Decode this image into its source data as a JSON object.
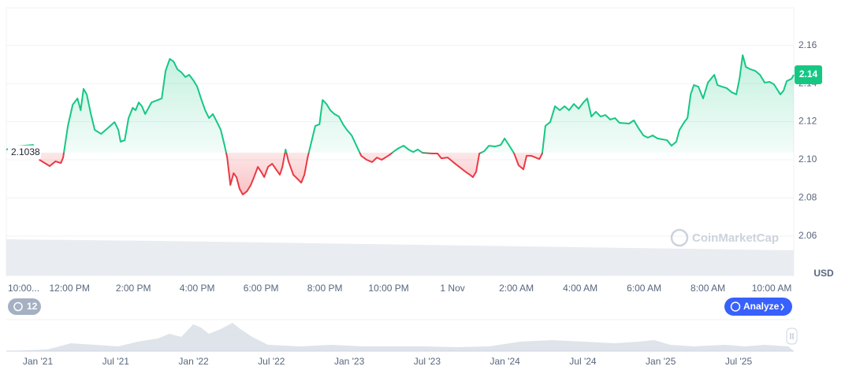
{
  "chart_data": {
    "type": "line",
    "x": [
      10.02,
      10.32,
      10.86,
      11.06,
      11.38,
      11.56,
      11.73,
      11.8,
      11.95,
      12.1,
      12.25,
      12.35,
      12.44,
      12.54,
      12.67,
      12.79,
      12.99,
      13.28,
      13.41,
      13.53,
      13.6,
      13.73,
      13.85,
      13.98,
      14.07,
      14.17,
      14.27,
      14.37,
      14.57,
      14.89,
      15.01,
      15.14,
      15.26,
      15.38,
      15.51,
      15.63,
      15.75,
      15.88,
      16.0,
      16.12,
      16.25,
      16.37,
      16.49,
      16.62,
      16.74,
      16.86,
      16.94,
      17.04,
      17.14,
      17.23,
      17.33,
      17.43,
      17.56,
      17.68,
      17.78,
      17.9,
      18.0,
      18.1,
      18.22,
      18.35,
      18.47,
      18.59,
      18.67,
      18.77,
      18.86,
      19.01,
      19.16,
      19.26,
      19.36,
      19.46,
      19.58,
      19.7,
      19.83,
      19.93,
      20.05,
      20.17,
      20.3,
      20.44,
      20.57,
      20.69,
      20.84,
      20.99,
      21.14,
      21.31,
      21.48,
      21.63,
      21.78,
      22.02,
      22.17,
      22.32,
      22.47,
      22.62,
      22.77,
      22.91,
      23.06,
      23.36,
      23.53,
      23.65,
      23.85,
      24.02,
      24.15,
      24.4,
      24.54,
      24.64,
      24.74,
      24.84,
      24.99,
      25.14,
      25.33,
      25.51,
      25.63,
      25.78,
      25.93,
      26.07,
      26.22,
      26.32,
      26.47,
      26.72,
      26.81,
      26.91,
      27.06,
      27.21,
      27.36,
      27.51,
      27.65,
      27.8,
      27.95,
      28.1,
      28.22,
      28.35,
      28.49,
      28.64,
      28.79,
      28.94,
      29.09,
      29.23,
      29.53,
      29.68,
      29.83,
      29.98,
      30.12,
      30.27,
      30.42,
      30.72,
      30.86,
      31.01,
      31.11,
      31.26,
      31.36,
      31.46,
      31.56,
      31.7,
      31.85,
      32.0,
      32.2,
      32.3,
      32.44,
      32.59,
      32.74,
      32.89,
      32.99,
      33.09,
      33.19,
      33.33,
      33.48,
      33.63,
      33.78,
      33.93,
      34.07,
      34.27,
      34.37,
      34.47,
      34.62,
      34.69
    ],
    "values": [
      2.1054,
      2.107,
      2.1078,
      2.1,
      2.0967,
      2.0992,
      2.0983,
      2.1012,
      2.1178,
      2.1289,
      2.1322,
      2.126,
      2.1372,
      2.1343,
      2.124,
      2.1157,
      2.1136,
      2.1178,
      2.1198,
      2.1157,
      2.1095,
      2.1103,
      2.1219,
      2.1273,
      2.126,
      2.1301,
      2.1281,
      2.124,
      2.1301,
      2.1322,
      2.1467,
      2.1529,
      2.1516,
      2.1475,
      2.1458,
      2.1434,
      2.1446,
      2.1417,
      2.1384,
      2.1322,
      2.126,
      2.1219,
      2.124,
      2.1198,
      2.1157,
      2.1074,
      2.1012,
      2.0868,
      2.093,
      2.0909,
      2.0847,
      2.0818,
      2.0835,
      2.0868,
      2.0909,
      2.0963,
      2.0938,
      2.0909,
      2.0963,
      2.0979,
      2.095,
      2.0922,
      2.0963,
      2.1054,
      2.0992,
      2.0922,
      2.0897,
      2.088,
      2.0922,
      2.1012,
      2.1095,
      2.1178,
      2.1186,
      2.1314,
      2.1293,
      2.126,
      2.124,
      2.1227,
      2.1186,
      2.1157,
      2.1128,
      2.1074,
      2.1021,
      2.1,
      2.0988,
      2.1012,
      2.1,
      2.1025,
      2.1045,
      2.1062,
      2.1074,
      2.1054,
      2.1041,
      2.1054,
      2.1037,
      2.1033,
      2.1033,
      2.1008,
      2.1012,
      2.0988,
      2.0971,
      2.0938,
      2.0922,
      2.0909,
      2.0938,
      2.1033,
      2.1045,
      2.1074,
      2.107,
      2.1078,
      2.1112,
      2.1074,
      2.1033,
      2.0971,
      2.095,
      2.1021,
      2.1021,
      2.1004,
      2.1033,
      2.1178,
      2.1198,
      2.1281,
      2.126,
      2.1281,
      2.126,
      2.1293,
      2.1268,
      2.1301,
      2.1322,
      2.1227,
      2.1252,
      2.1227,
      2.1235,
      2.1211,
      2.1219,
      2.1194,
      2.119,
      2.1207,
      2.1165,
      2.1128,
      2.1116,
      2.1128,
      2.1112,
      2.1103,
      2.1074,
      2.1095,
      2.1157,
      2.1198,
      2.1219,
      2.1343,
      2.1392,
      2.1384,
      2.1322,
      2.1405,
      2.1446,
      2.1392,
      2.1384,
      2.1376,
      2.1355,
      2.1343,
      2.1425,
      2.1549,
      2.1487,
      2.1475,
      2.1467,
      2.1446,
      2.1405,
      2.1409,
      2.1396,
      2.1343,
      2.1363,
      2.1413,
      2.1425,
      2.1446
    ],
    "baseline": 2.1038,
    "up_color": "#16c784",
    "down_color": "#ea3943",
    "price_badge": "2.14",
    "xlim": [
      10.02,
      34.69
    ],
    "xticks": [
      {
        "value": 10,
        "label": "10:00..."
      },
      {
        "value": 12,
        "label": "12:00 PM"
      },
      {
        "value": 14,
        "label": "2:00 PM"
      },
      {
        "value": 16,
        "label": "4:00 PM"
      },
      {
        "value": 18,
        "label": "6:00 PM"
      },
      {
        "value": 20,
        "label": "8:00 PM"
      },
      {
        "value": 22,
        "label": "10:00 PM"
      },
      {
        "value": 24,
        "label": "1 Nov"
      },
      {
        "value": 26,
        "label": "2:00 AM"
      },
      {
        "value": 28,
        "label": "4:00 AM"
      },
      {
        "value": 30,
        "label": "6:00 AM"
      },
      {
        "value": 32,
        "label": "8:00 AM"
      },
      {
        "value": 34,
        "label": "10:00 AM"
      }
    ],
    "ylim": [
      2.0393,
      2.1797
    ],
    "yticks": [
      2.06,
      2.08,
      {
        "value": 2.1,
        "label": "2.10"
      },
      2.12,
      2.14,
      2.16
    ],
    "y_unit": "USD",
    "grid": true,
    "watermark": "CoinMarketCap",
    "interval_badge": "12",
    "analyze_button": "Analyze",
    "navigator_labels": [
      "Jan '21",
      "Jul '21",
      "Jan '22",
      "Jul '22",
      "Jan '23",
      "Jul '23",
      "Jan '24",
      "Jul '24",
      "Jan '25",
      "Jul '25"
    ]
  }
}
